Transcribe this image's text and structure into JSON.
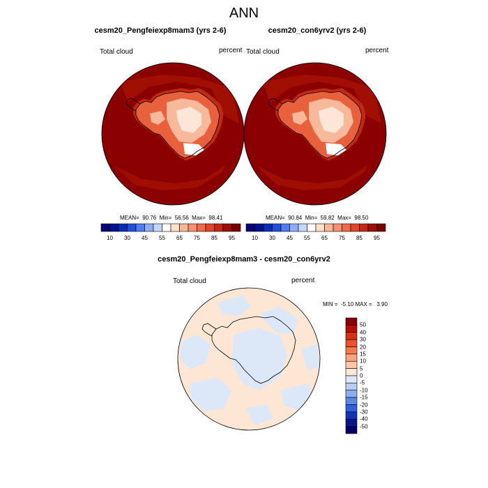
{
  "main_title": "ANN",
  "panels": [
    {
      "title": "cesm20_Pengfeiexp8mam3 (yrs 2-6)",
      "field_label": "Total cloud",
      "units_label": "percent",
      "stats": "MEAN=  90.76  Min=  56.56  Max=  98.41"
    },
    {
      "title": "cesm20_con6yrv2 (yrs 2-6)",
      "field_label": "Total cloud",
      "units_label": "percent",
      "stats": "MEAN=  90.84  Min=  59.82  Max=  98.50"
    }
  ],
  "horizontal_colorbar": {
    "tick_labels": [
      "10",
      "30",
      "45",
      "55",
      "65",
      "75",
      "85",
      "95"
    ],
    "colors": [
      "#0b0078",
      "#00128c",
      "#0a2eb4",
      "#1e50dc",
      "#4f7df0",
      "#8cadf5",
      "#c2d8fa",
      "#ffffff",
      "#fde0cc",
      "#f9b796",
      "#f59070",
      "#ef6a48",
      "#e2452a",
      "#c52713",
      "#9e0e04",
      "#7a0000"
    ]
  },
  "difference_panel": {
    "title": "cesm20_Pengfeiexp8mam3 - cesm20_con6yrv2",
    "field_label": "Total cloud",
    "units_label": "percent",
    "stats": "MIN =  -5.10 MAX =   3.90"
  },
  "vertical_colorbar": {
    "tick_labels": [
      "50",
      "40",
      "30",
      "20",
      "15",
      "10",
      "5",
      "0",
      "-5",
      "-10",
      "-15",
      "-20",
      "-30",
      "-40",
      "-50"
    ],
    "colors": [
      "#8a0000",
      "#b51003",
      "#d8300f",
      "#ee5028",
      "#f5784f",
      "#f9a47e",
      "#fcc9a8",
      "#fde6d3",
      "#dce8f8",
      "#b8cdf3",
      "#8caeee",
      "#5c88e8",
      "#3060dc",
      "#1434b6",
      "#06168e",
      "#000066"
    ]
  },
  "map_colors": {
    "ocean_dark": "#8b0000",
    "ring": "#a31004",
    "coast_zone": "#c02a10",
    "ice_mid": "#e8603c",
    "ice_light": "#f8b89a",
    "ice_pale": "#fde6d8",
    "diff_positive": "#fde6d3",
    "diff_negative": "#dce8f8"
  }
}
